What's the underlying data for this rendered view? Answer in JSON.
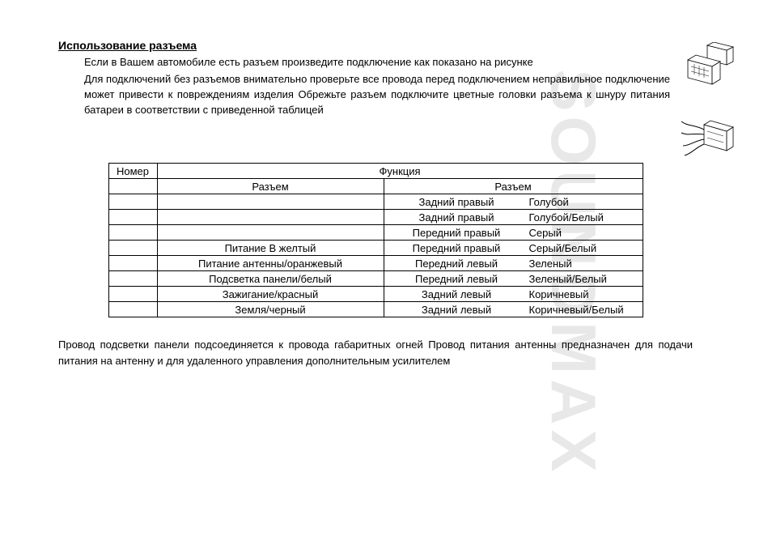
{
  "watermark": "SOUNDMAX",
  "heading": "Использование разъема",
  "intro": {
    "p1": "Если в Вашем автомобиле есть разъем        произведите подключение  как показано на рисунке",
    "p2": "Для подключений без разъемов        внимательно проверьте все провода перед подключением   неправильное подключение может привести к повреждениям изделия  Обрежьте разъем  подключите цветные головки разъема к шнуру питания батареи в соответствии с приведенной таблицей"
  },
  "table": {
    "head_num": "Номер",
    "head_func": "Функция",
    "sub_a": "Разъем",
    "sub_b": "Разъем",
    "rows": [
      {
        "a": "",
        "b_label": "Задний правый",
        "b_color": "Голубой"
      },
      {
        "a": "",
        "b_label": "Задний правый",
        "b_color": "Голубой/Белый"
      },
      {
        "a": "",
        "b_label": "Передний правый",
        "b_color": "Серый"
      },
      {
        "a": "Питание     В        желтый",
        "b_label": "Передний правый",
        "b_color": "Серый/Белый"
      },
      {
        "a": "Питание антенны/оранжевый",
        "b_label": "Передний левый",
        "b_color": "Зеленый"
      },
      {
        "a": "Подсветка панели/белый",
        "b_label": "Передний левый",
        "b_color": "Зеленый/Белый"
      },
      {
        "a": "Зажигание/красный",
        "b_label": "Задний левый",
        "b_color": "Коричневый"
      },
      {
        "a": "Земля/черный",
        "b_label": "Задний левый",
        "b_color": "Коричневый/Белый"
      }
    ]
  },
  "footnote": "Провод подсветки панели подсоединяется к       провода габаритных огней  Провод питания антенны предназначен для подачи питания на антенну и для удаленного управления дополнительным усилителем"
}
